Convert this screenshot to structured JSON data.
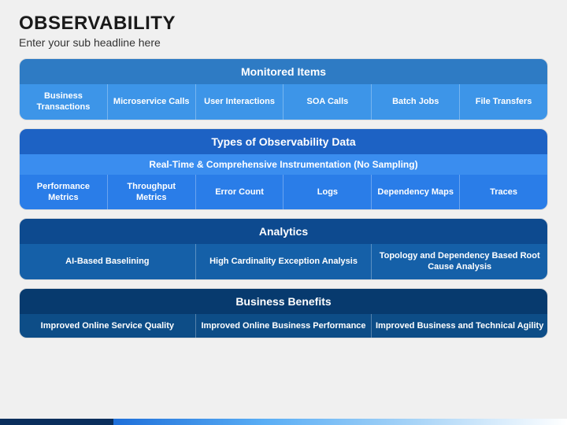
{
  "title": "OBSERVABILITY",
  "subtitle": "Enter your sub headline here",
  "panels": [
    {
      "header": "Monitored Items",
      "header_bg": "#2e7bc4",
      "body_bg": "#3d95e8",
      "cells": [
        "Business Transactions",
        "Microservice Calls",
        "User Interactions",
        "SOA Calls",
        "Batch Jobs",
        "File Transfers"
      ]
    },
    {
      "header": "Types of Observability Data",
      "header_bg": "#1d62c4",
      "sub": "Real-Time & Comprehensive Instrumentation (No Sampling)",
      "sub_bg": "#3a8def",
      "body_bg": "#2a7de8",
      "cells": [
        "Performance Metrics",
        "Throughput Metrics",
        "Error Count",
        "Logs",
        "Dependency Maps",
        "Traces"
      ]
    },
    {
      "header": "Analytics",
      "header_bg": "#0d4a8f",
      "body_bg": "#1560a8",
      "cells": [
        "AI-Based Baselining",
        "High Cardinality Exception Analysis",
        "Topology and Dependency Based Root Cause Analysis"
      ]
    },
    {
      "header": "Business Benefits",
      "header_bg": "#073a6e",
      "body_bg": "#0d4d87",
      "cells": [
        "Improved Online Service Quality",
        "Improved Online Business Performance",
        "Improved Business and Technical Agility"
      ]
    }
  ]
}
